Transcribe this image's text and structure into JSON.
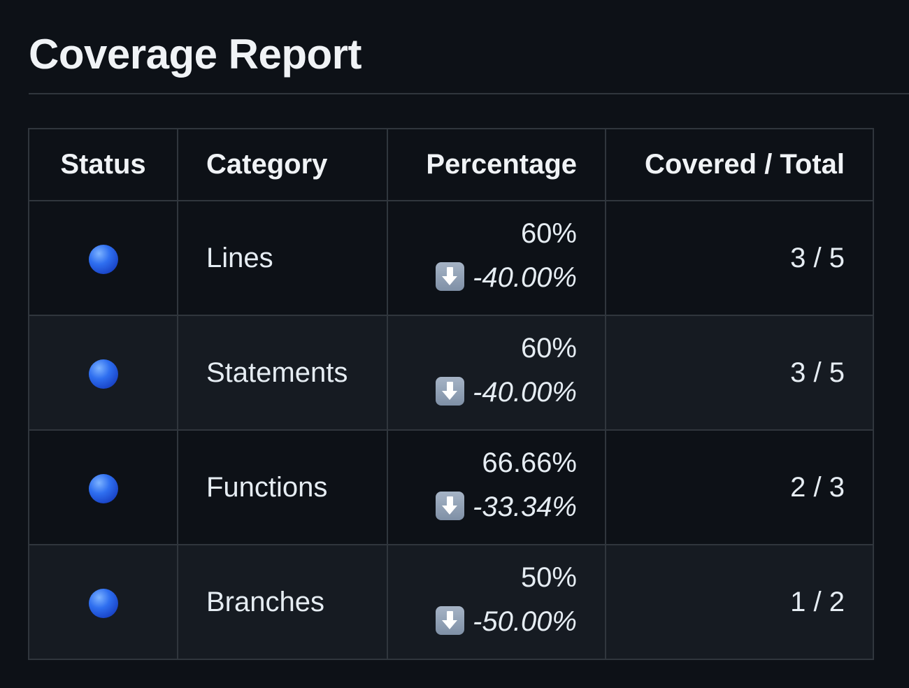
{
  "title": "Coverage Report",
  "table": {
    "headers": {
      "status": "Status",
      "category": "Category",
      "percentage": "Percentage",
      "covered": "Covered / Total"
    },
    "rows": [
      {
        "status_icon": "blue-circle-icon",
        "category": "Lines",
        "percentage": "60%",
        "delta": "-40.00%",
        "delta_icon": "down-arrow-icon",
        "covered": "3 / 5"
      },
      {
        "status_icon": "blue-circle-icon",
        "category": "Statements",
        "percentage": "60%",
        "delta": "-40.00%",
        "delta_icon": "down-arrow-icon",
        "covered": "3 / 5"
      },
      {
        "status_icon": "blue-circle-icon",
        "category": "Functions",
        "percentage": "66.66%",
        "delta": "-33.34%",
        "delta_icon": "down-arrow-icon",
        "covered": "2 / 3"
      },
      {
        "status_icon": "blue-circle-icon",
        "category": "Branches",
        "percentage": "50%",
        "delta": "-50.00%",
        "delta_icon": "down-arrow-icon",
        "covered": "1 / 2"
      }
    ]
  },
  "colors": {
    "background": "#0d1117",
    "row_alt": "#161b22",
    "border": "#30363d",
    "status_dot": "#2f6ff0"
  }
}
